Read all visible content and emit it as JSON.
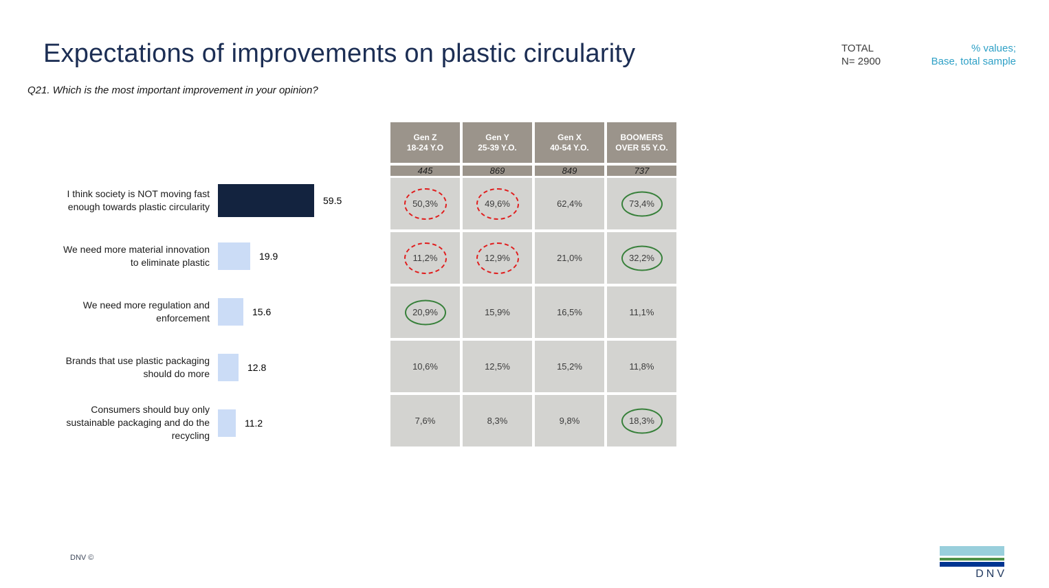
{
  "slide": {
    "title": "Expectations of improvements on plastic circularity",
    "question": "Q21. Which is the most important improvement in your opinion?",
    "total_label": "TOTAL",
    "total_value": "N= 2900",
    "note_line1": "% values;",
    "note_line2": "Base, total sample",
    "footer_copyright": "DNV ©",
    "logo_text": "DNV"
  },
  "chart_data": {
    "type": "bar",
    "orientation": "horizontal",
    "title": "",
    "xlabel": "",
    "ylabel": "",
    "xlim": [
      0,
      65
    ],
    "grid": false,
    "categories": [
      "I think society is NOT moving fast enough towards plastic circularity",
      "We need more material innovation to eliminate plastic",
      "We need more regulation and enforcement",
      "Brands that use plastic packaging should do more",
      "Consumers should buy only sustainable packaging and do the recycling"
    ],
    "values": [
      59.5,
      19.9,
      15.6,
      12.8,
      11.2
    ],
    "value_labels": [
      "59.5",
      "19.9",
      "15.6",
      "12.8",
      "11.2"
    ],
    "bar_colors": [
      "#13233F",
      "#CBDCF6",
      "#CBDCF6",
      "#CBDCF6",
      "#CBDCF6"
    ]
  },
  "table": {
    "columns": [
      {
        "gen": "Gen Z",
        "age": "18-24 Y.O",
        "base": "445"
      },
      {
        "gen": "Gen Y",
        "age": "25-39 Y.O.",
        "base": "869"
      },
      {
        "gen": "Gen X",
        "age": "40-54 Y.O.",
        "base": "849"
      },
      {
        "gen": "BOOMERS",
        "age": "OVER 55 Y.O.",
        "base": "737"
      }
    ],
    "rows": [
      {
        "cells": [
          {
            "value": "50,3%",
            "highlight": "red"
          },
          {
            "value": "49,6%",
            "highlight": "red"
          },
          {
            "value": "62,4%",
            "highlight": "none"
          },
          {
            "value": "73,4%",
            "highlight": "green"
          }
        ]
      },
      {
        "cells": [
          {
            "value": "11,2%",
            "highlight": "red"
          },
          {
            "value": "12,9%",
            "highlight": "red"
          },
          {
            "value": "21,0%",
            "highlight": "none"
          },
          {
            "value": "32,2%",
            "highlight": "green"
          }
        ]
      },
      {
        "cells": [
          {
            "value": "20,9%",
            "highlight": "green"
          },
          {
            "value": "15,9%",
            "highlight": "none"
          },
          {
            "value": "16,5%",
            "highlight": "none"
          },
          {
            "value": "11,1%",
            "highlight": "none"
          }
        ]
      },
      {
        "cells": [
          {
            "value": "10,6%",
            "highlight": "none"
          },
          {
            "value": "12,5%",
            "highlight": "none"
          },
          {
            "value": "15,2%",
            "highlight": "none"
          },
          {
            "value": "11,8%",
            "highlight": "none"
          }
        ]
      },
      {
        "cells": [
          {
            "value": "7,6%",
            "highlight": "none"
          },
          {
            "value": "8,3%",
            "highlight": "none"
          },
          {
            "value": "9,8%",
            "highlight": "none"
          },
          {
            "value": "18,3%",
            "highlight": "green"
          }
        ]
      }
    ]
  },
  "colors": {
    "title": "#1C2E54",
    "accent_teal": "#2EA0C6",
    "bar_primary": "#13233F",
    "bar_secondary": "#CBDCF6",
    "table_header_bg": "#9B948B",
    "table_cell_bg": "#D3D3D0",
    "highlight_red": "#E01E1E",
    "highlight_green": "#37803A",
    "logo_light_blue": "#99CFDC",
    "logo_green": "#4D9147",
    "logo_dark_blue": "#003591",
    "logo_text": "#223A60"
  }
}
